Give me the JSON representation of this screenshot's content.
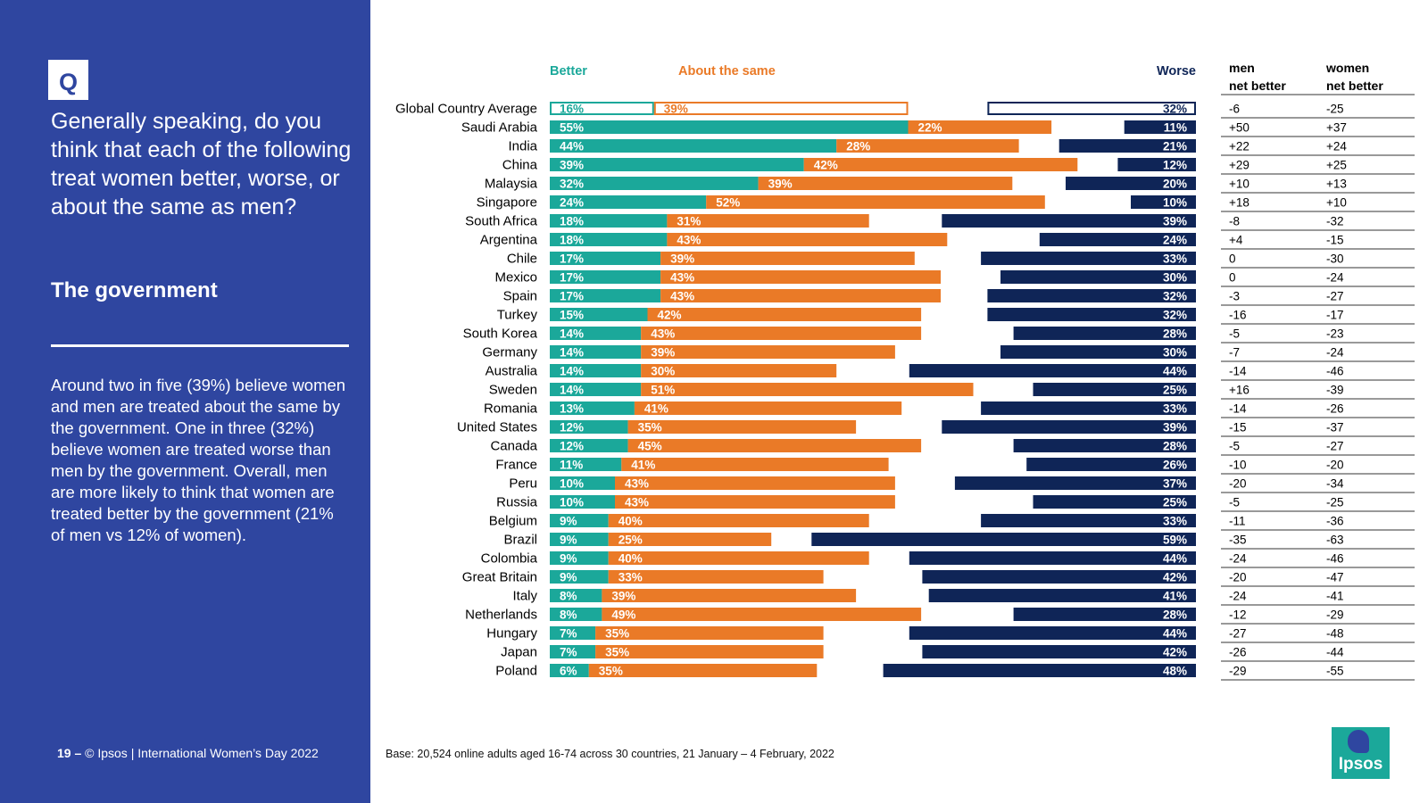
{
  "question_badge": "Q",
  "question": "Generally speaking, do you think that each of the following treat women better, worse, or about the same as men?",
  "subject": "The government",
  "summary": "Around two in five (39%) believe women and men are treated about the same by the government. One in three (32%) believe women are treated worse than men by the government. Overall, men are more likely to think that women are treated better by the government (21% of men vs 12% of women).",
  "footer": {
    "page_number": "19 –",
    "text": "© Ipsos | International Women’s Day 2022"
  },
  "base_note": "Base: 20,524 online adults aged 16-74 across 30 countries, 21 January – 4 February, 2022",
  "logo_text": "Ipsos",
  "colors": {
    "better": "#1ba89a",
    "same": "#ea7a27",
    "worse": "#0f2557",
    "panel": "#2f46a0"
  },
  "chart_data": {
    "type": "bar",
    "orientation": "horizontal-stacked",
    "legend": {
      "better": "Better",
      "same": "About the same",
      "worse": "Worse"
    },
    "net_headers": {
      "men": [
        "men",
        "net better"
      ],
      "women": [
        "women",
        "net better"
      ]
    },
    "categories": [
      "Global Country Average",
      "Saudi Arabia",
      "India",
      "China",
      "Malaysia",
      "Singapore",
      "South Africa",
      "Argentina",
      "Chile",
      "Mexico",
      "Spain",
      "Turkey",
      "South Korea",
      "Germany",
      "Australia",
      "Sweden",
      "Romania",
      "United States",
      "Canada",
      "France",
      "Peru",
      "Russia",
      "Belgium",
      "Brazil",
      "Colombia",
      "Great Britain",
      "Italy",
      "Netherlands",
      "Hungary",
      "Japan",
      "Poland"
    ],
    "series": [
      {
        "name": "Better",
        "values": [
          16,
          55,
          44,
          39,
          32,
          24,
          18,
          18,
          17,
          17,
          17,
          15,
          14,
          14,
          14,
          14,
          13,
          12,
          12,
          11,
          10,
          10,
          9,
          9,
          9,
          9,
          8,
          8,
          7,
          7,
          6
        ]
      },
      {
        "name": "About the same",
        "values": [
          39,
          22,
          28,
          42,
          39,
          52,
          31,
          43,
          39,
          43,
          43,
          42,
          43,
          39,
          30,
          51,
          41,
          35,
          45,
          41,
          43,
          43,
          40,
          25,
          40,
          33,
          39,
          49,
          35,
          35,
          35
        ]
      },
      {
        "name": "Worse",
        "values": [
          32,
          11,
          21,
          12,
          20,
          10,
          39,
          24,
          33,
          30,
          32,
          32,
          28,
          30,
          44,
          25,
          33,
          39,
          28,
          26,
          37,
          25,
          33,
          59,
          44,
          42,
          41,
          28,
          44,
          42,
          48
        ]
      }
    ],
    "men_net_better": [
      "-6",
      "+50",
      "+22",
      "+29",
      "+10",
      "+18",
      "-8",
      "+4",
      "0",
      "0",
      "-3",
      "-16",
      "-5",
      "-7",
      "-14",
      "+16",
      "-14",
      "-15",
      "-5",
      "-10",
      "-20",
      "-5",
      "-11",
      "-35",
      "-24",
      "-20",
      "-24",
      "-12",
      "-27",
      "-26",
      "-29"
    ],
    "women_net_better": [
      "-25",
      "+37",
      "+24",
      "+25",
      "+13",
      "+10",
      "-32",
      "-15",
      "-30",
      "-24",
      "-27",
      "-17",
      "-23",
      "-24",
      "-46",
      "-39",
      "-26",
      "-37",
      "-27",
      "-20",
      "-34",
      "-25",
      "-36",
      "-63",
      "-46",
      "-47",
      "-41",
      "-29",
      "-48",
      "-44",
      "-55"
    ],
    "highlight_row": "Global Country Average"
  }
}
